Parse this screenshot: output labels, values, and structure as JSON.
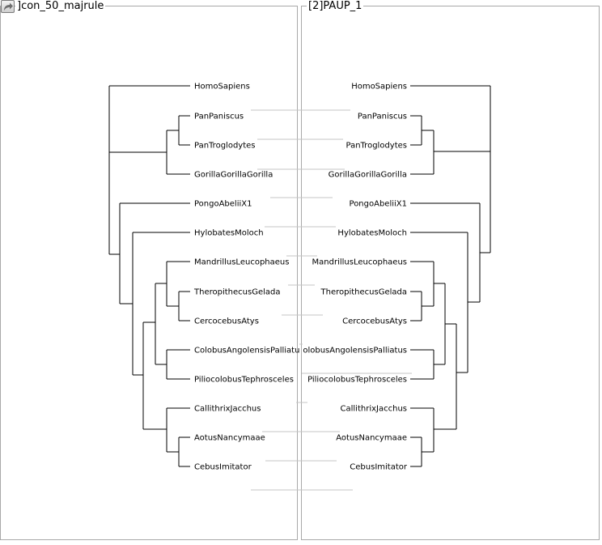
{
  "window": {
    "left_title": "]con_50_majrule",
    "right_title": "[2]PAUP_1",
    "redo_icon": "redo-arrow-icon"
  },
  "left_tree": {
    "name": "con_50_majrule",
    "taxa": [
      "HomoSapiens",
      "PanPaniscus",
      "PanTroglodytes",
      "GorillaGorillaGorilla",
      "PongoAbeliiX1",
      "HylobatesMoloch",
      "MandrillusLeucophaeus",
      "TheropithecusGelada",
      "CercocebusAtys",
      "ColobusAngolensisPalliatu",
      "PiliocolobusTephrosceles",
      "CallithrixJacchus",
      "AotusNancymaae",
      "CebusImitator"
    ]
  },
  "right_tree": {
    "name": "[2]PAUP_1",
    "taxa": [
      "HomoSapiens",
      "PanPaniscus",
      "PanTroglodytes",
      "GorillaGorillaGorilla",
      "PongoAbeliiX1",
      "HylobatesMoloch",
      "MandrillusLeucophaeus",
      "TheropithecusGelada",
      "CercocebusAtys",
      "olobusAngolensisPalliatus",
      "PiliocolobusTephrosceles",
      "CallithrixJacchus",
      "AotusNancymaae",
      "CebusImitator"
    ]
  }
}
